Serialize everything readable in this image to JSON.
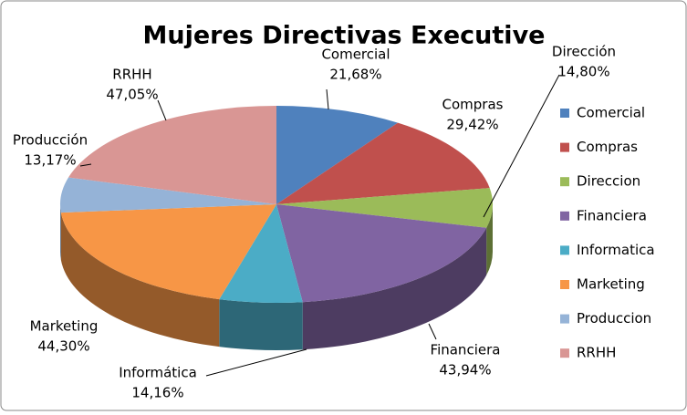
{
  "chart_data": {
    "type": "pie3d",
    "title": "Mujeres Directivas Executive",
    "categories": [
      "Comercial",
      "Compras",
      "Direccion",
      "Financiera",
      "Informatica",
      "Marketing",
      "Produccion",
      "RRHH"
    ],
    "data_label_names": [
      "Comercial",
      "Compras",
      "Dirección",
      "Financiera",
      "Informática",
      "Marketing",
      "Producción",
      "RRHH"
    ],
    "values": [
      21.68,
      29.42,
      14.8,
      43.94,
      14.16,
      44.3,
      13.17,
      47.05
    ],
    "value_labels": [
      "21,68%",
      "29,42%",
      "14,80%",
      "43,94%",
      "14,16%",
      "44,30%",
      "13,17%",
      "47,05%"
    ],
    "colors": [
      "#4f81bd",
      "#c0504d",
      "#9bbb59",
      "#8064a2",
      "#4bacc6",
      "#f79646",
      "#95b3d7",
      "#d99694"
    ],
    "legend": "right"
  }
}
